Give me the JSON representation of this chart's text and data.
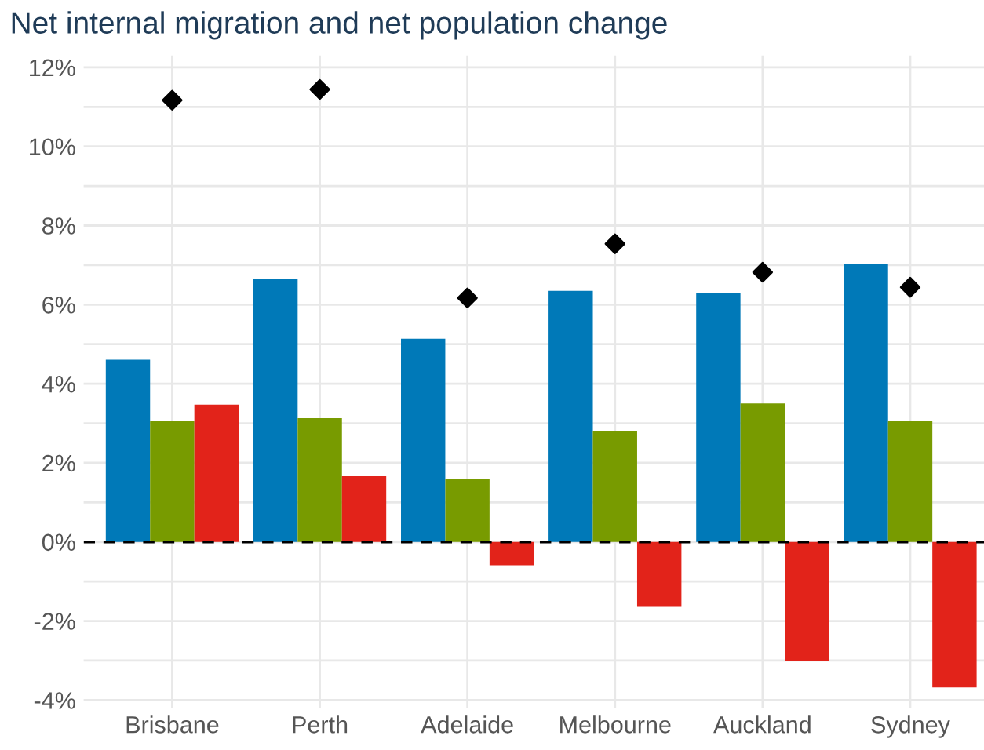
{
  "chart_data": {
    "type": "bar",
    "title": "Net internal migration and net population change",
    "categories": [
      "Brisbane",
      "Perth",
      "Adelaide",
      "Melbourne",
      "Auckland",
      "Sydney"
    ],
    "series": [
      {
        "color": "#0079b8",
        "values": [
          4.61,
          6.64,
          5.14,
          6.35,
          6.29,
          7.03
        ]
      },
      {
        "color": "#789b00",
        "values": [
          3.07,
          3.13,
          1.58,
          2.81,
          3.5,
          3.07
        ]
      },
      {
        "color": "#e2231a",
        "values": [
          3.47,
          1.66,
          -0.59,
          -1.64,
          -3.01,
          -3.68
        ]
      },
      {
        "type": "scatter",
        "color": "#000000",
        "marker": "diamond",
        "x": [
          "Brisbane",
          "Perth",
          "Adelaide",
          "Melbourne",
          "Auckland",
          "Sydney"
        ],
        "values": [
          11.17,
          11.44,
          6.17,
          7.54,
          6.82,
          6.44
        ]
      }
    ],
    "ylim": [
      -4.2,
      12.3
    ],
    "yticks": [
      {
        "value": -4,
        "label": "-4%"
      },
      {
        "value": -3,
        "label": null
      },
      {
        "value": -2,
        "label": "-2%"
      },
      {
        "value": -1,
        "label": null
      },
      {
        "value": 0,
        "label": "0%"
      },
      {
        "value": 1,
        "label": null
      },
      {
        "value": 2,
        "label": "2%"
      },
      {
        "value": 3,
        "label": null
      },
      {
        "value": 4,
        "label": "4%"
      },
      {
        "value": 5,
        "label": null
      },
      {
        "value": 6,
        "label": "6%"
      },
      {
        "value": 7,
        "label": null
      },
      {
        "value": 8,
        "label": "8%"
      },
      {
        "value": 9,
        "label": null
      },
      {
        "value": 10,
        "label": "10%"
      },
      {
        "value": 11,
        "label": null
      },
      {
        "value": 12,
        "label": "12%"
      }
    ],
    "grid": true,
    "ref_lines": [
      {
        "axis": "y",
        "value": 0,
        "color": "#000000",
        "line_style": "dashed"
      }
    ]
  }
}
